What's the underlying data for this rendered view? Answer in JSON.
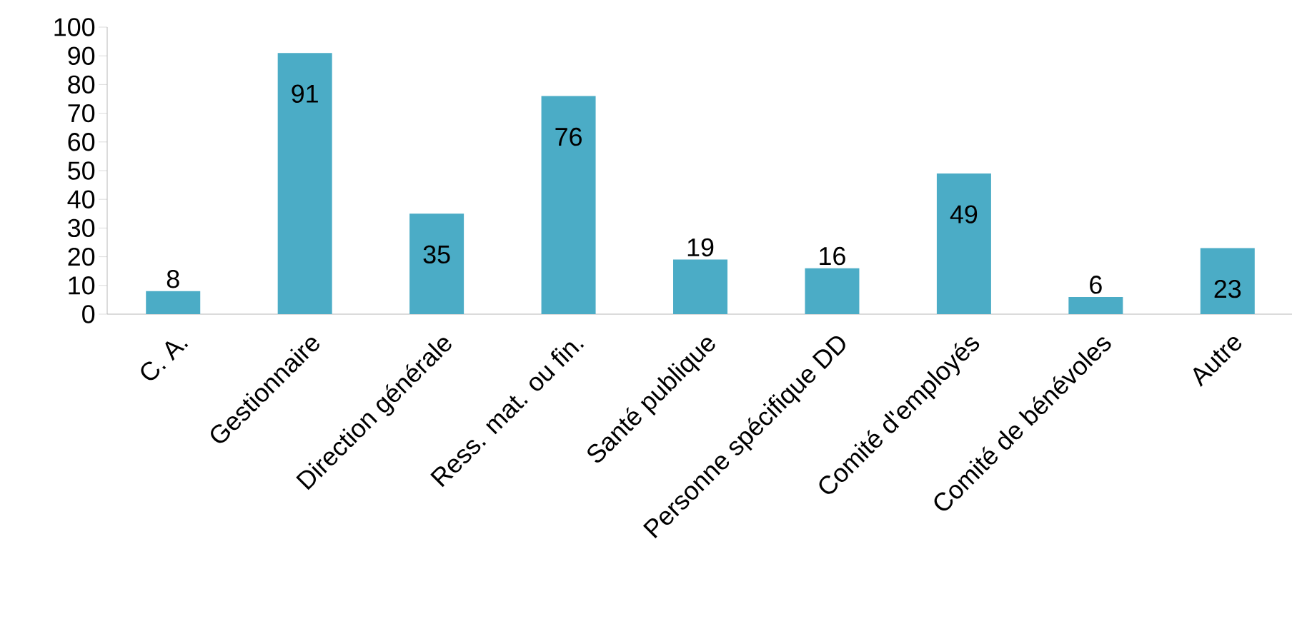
{
  "chart_data": {
    "type": "bar",
    "categories": [
      "C. A.",
      "Gestionnaire",
      "Direction générale",
      "Ress. mat. ou fin.",
      "Santé publique",
      "Personne spécifique DD",
      "Comité d'employés",
      "Comité de bénévoles",
      "Autre"
    ],
    "values": [
      8,
      91,
      35,
      76,
      19,
      16,
      49,
      6,
      23
    ],
    "color": "#4bacc6",
    "ylim": [
      0,
      100
    ],
    "yticks": [
      0,
      10,
      20,
      30,
      40,
      50,
      60,
      70,
      80,
      90,
      100
    ],
    "data_labels": true
  }
}
